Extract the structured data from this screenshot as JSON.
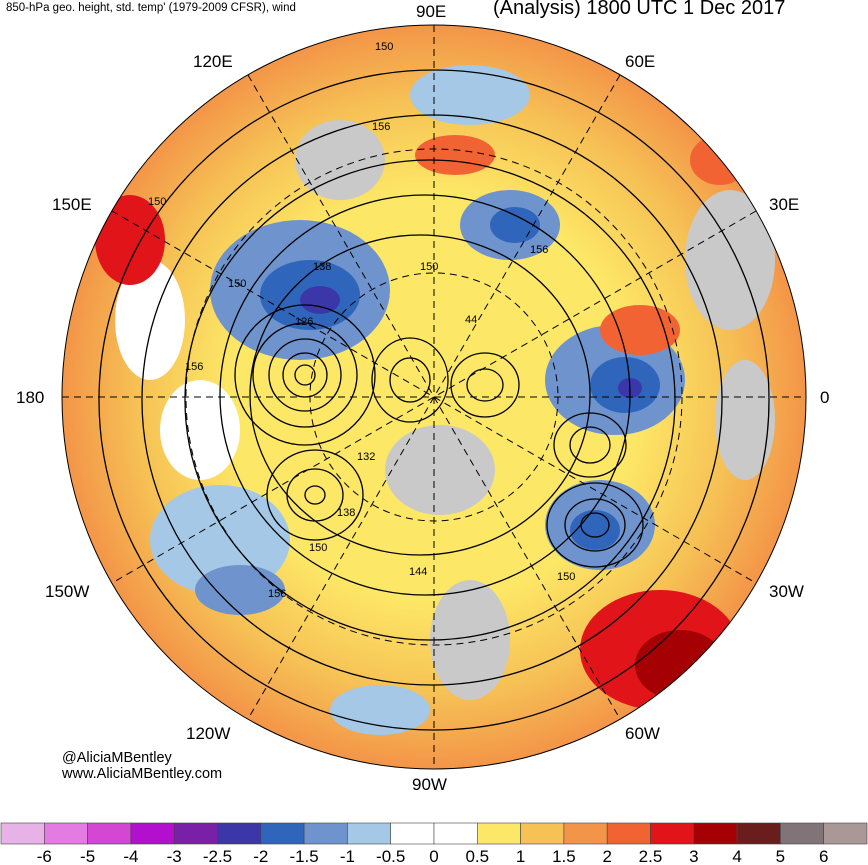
{
  "header": {
    "title_left": "850-hPa geo. height, std. temp' (1979-2009 CFSR), wind",
    "title_right": "(Analysis) 1800 UTC 1 Dec 2017"
  },
  "longitude_labels": {
    "e90": "90E",
    "e60": "60E",
    "e30": "30E",
    "zero": "0",
    "w30": "30W",
    "w60": "60W",
    "w90": "90W",
    "w120": "120W",
    "w150": "150W",
    "dateline": "180",
    "e150": "150E",
    "e120": "120E"
  },
  "contour_labels": [
    "150",
    "150",
    "150",
    "150",
    "156",
    "138",
    "126",
    "156",
    "44",
    "132",
    "138",
    "150",
    "144",
    "150",
    "156",
    "156"
  ],
  "credit": {
    "handle": "@AliciaMBentley",
    "website": "www.AliciaMBentley.com"
  },
  "colorbar": {
    "colors": [
      "#e7b2e6",
      "#e47be3",
      "#d447d4",
      "#b20fcf",
      "#7a20a8",
      "#3c37a8",
      "#2f66bb",
      "#6f94cd",
      "#a4c8e5",
      "#ffffff",
      "#ffffff",
      "#fde766",
      "#f6c155",
      "#f39548",
      "#f16333",
      "#e01419",
      "#a50004",
      "#6a1d1d",
      "#817479",
      "#aa9897"
    ],
    "labels": [
      "-6",
      "-5",
      "-4",
      "-3",
      "-2.5",
      "-2",
      "-1.5",
      "-1",
      "-0.5",
      "0",
      "0.5",
      "1",
      "1.5",
      "2",
      "2.5",
      "3",
      "4",
      "5",
      "6"
    ]
  }
}
